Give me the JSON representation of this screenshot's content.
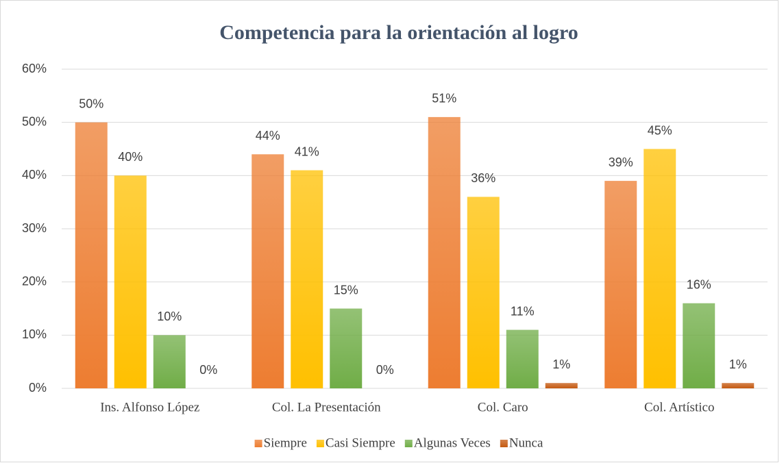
{
  "chart_data": {
    "type": "bar",
    "title": "Competencia para la orientación al logro",
    "categories": [
      "Ins. Alfonso López",
      "Col. La Presentación",
      "Col. Caro",
      "Col. Artístico"
    ],
    "series": [
      {
        "name": "Siempre",
        "color": "#ed7d31",
        "values": [
          50,
          44,
          51,
          39
        ],
        "value_labels": [
          "50%",
          "44%",
          "51%",
          "39%"
        ]
      },
      {
        "name": "Casi Siempre",
        "color": "#ffc000",
        "values": [
          40,
          41,
          36,
          45
        ],
        "value_labels": [
          "40%",
          "41%",
          "36%",
          "45%"
        ]
      },
      {
        "name": "Algunas Veces",
        "color": "#70ad47",
        "values": [
          10,
          15,
          11,
          16
        ],
        "value_labels": [
          "10%",
          "15%",
          "11%",
          "16%"
        ]
      },
      {
        "name": "Nunca",
        "color": "#c55a11",
        "values": [
          0,
          0,
          1,
          1
        ],
        "value_labels": [
          "0%",
          "0%",
          "1%",
          "1%"
        ]
      }
    ],
    "ylim": [
      0,
      60
    ],
    "yticks": [
      {
        "value": 0,
        "label": "0%"
      },
      {
        "value": 10,
        "label": "10%"
      },
      {
        "value": 20,
        "label": "20%"
      },
      {
        "value": 30,
        "label": "30%"
      },
      {
        "value": 40,
        "label": "40%"
      },
      {
        "value": 50,
        "label": "50%"
      },
      {
        "value": 60,
        "label": "60%"
      }
    ],
    "grid": true,
    "legend": "bottom"
  }
}
